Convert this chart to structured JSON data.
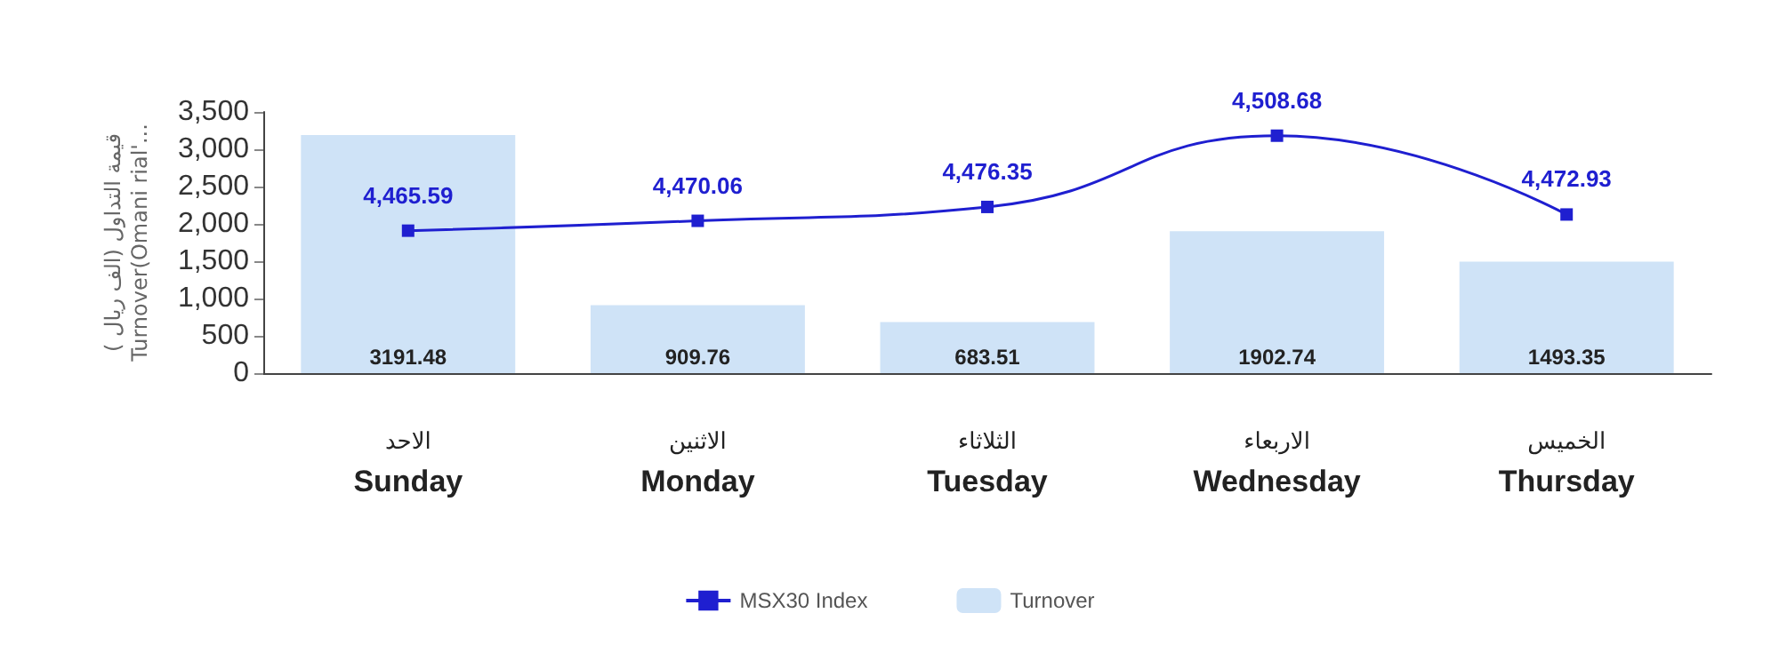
{
  "chart_data": {
    "type": "bar",
    "ylabel": "قيمة التداول (الف ريال )\nTurnover(Omani rial'...",
    "categories": [
      "الاحد\nSunday",
      "الاثنين\nMonday",
      "الثلاثاء\nTuesday",
      "الاربعاء\nWednesday",
      "الخميس\nThursday"
    ],
    "series": [
      {
        "name": "Turnover",
        "color": "#cfe3f7",
        "values": [
          3191.48,
          909.76,
          683.51,
          1902.74,
          1493.35
        ]
      },
      {
        "name": "MSX30 Index",
        "type": "line",
        "axis": "y2",
        "color": "#1f1fd0",
        "values": [
          4465.59,
          4470.06,
          4476.35,
          4508.68,
          4472.93
        ],
        "value_labels": [
          "4,465.59",
          "4,470.06",
          "4,476.35",
          "4,508.68",
          "4,472.93"
        ]
      }
    ],
    "ylim": [
      0,
      3500
    ],
    "yticks": [
      0,
      500,
      {
        "value": 1000,
        "label": "1,000"
      },
      {
        "value": 1500,
        "label": "1,500"
      },
      {
        "value": 2000,
        "label": "2,000"
      },
      {
        "value": 2500,
        "label": "2,500"
      },
      {
        "value": 3000,
        "label": "3,000"
      },
      {
        "value": 3500,
        "label": "3,500"
      }
    ],
    "tick_labels": "xy",
    "data_labels": true,
    "legend": "bottom",
    "marker": "square",
    "line_style": "solid",
    "grid": false
  }
}
